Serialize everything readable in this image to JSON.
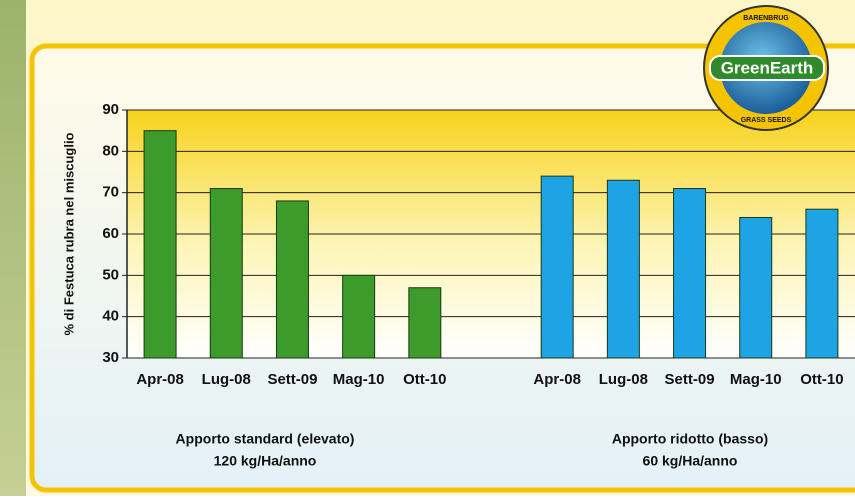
{
  "chart_data": {
    "type": "bar",
    "y_label": "% di Festuca rubra nel miscuglio",
    "categories": [
      "Apr-08",
      "Lug-08",
      "Sett-09",
      "Mag-10",
      "Ott-10",
      null,
      "Apr-08",
      "Lug-08",
      "Sett-09",
      "Mag-10",
      "Ott-10"
    ],
    "series": [
      {
        "color": "#3d9b2c",
        "values": [
          85,
          71,
          68,
          50,
          47,
          null,
          null,
          null,
          null,
          null,
          null
        ]
      },
      {
        "color": "#1ea3e4",
        "values": [
          null,
          null,
          null,
          null,
          null,
          null,
          74,
          73,
          71,
          64,
          66
        ]
      }
    ],
    "ylim": [
      30,
      90
    ],
    "yticks": [
      30,
      40,
      50,
      60,
      70,
      80,
      90
    ],
    "grid": true,
    "annotations": [
      "Apporto standard (elevato)",
      "120 kg/Ha/anno",
      "Apporto ridotto (basso)",
      "60 kg/Ha/anno"
    ],
    "logo": {
      "name": "GreenEarth",
      "top": "BARENBRUG",
      "bottom": "GRASS SEEDS"
    }
  }
}
